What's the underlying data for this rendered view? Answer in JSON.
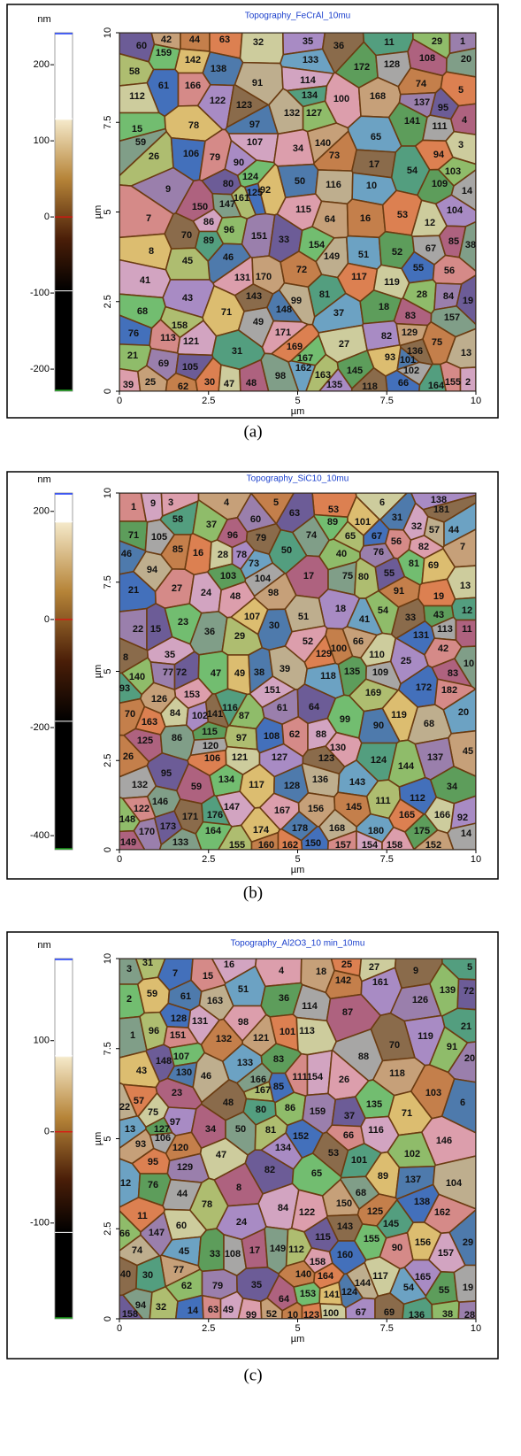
{
  "chart_data": [
    {
      "type": "image",
      "title": "Topography_FeCrAl_10mu",
      "caption": "(a)",
      "colorbar": {
        "label": "nm",
        "lim": [
          -229,
          242
        ],
        "ticks": [
          200,
          100,
          0,
          -100,
          -200
        ]
      },
      "xlabel": "µm",
      "ylabel": "µm",
      "xlim": [
        0,
        10
      ],
      "ylim": [
        0,
        10
      ],
      "xticks": [
        0,
        2.5,
        5,
        7.5,
        10
      ],
      "yticks": [
        0,
        2.5,
        5,
        7.5,
        10
      ],
      "grain_labels": [
        42,
        44,
        63,
        32,
        35,
        36,
        11,
        29,
        1,
        60,
        159,
        142,
        138,
        91,
        133,
        172,
        128,
        108,
        20,
        58,
        61,
        166,
        114,
        100,
        168,
        74,
        5,
        112,
        122,
        123,
        134,
        127,
        137,
        95,
        15,
        78,
        97,
        132,
        65,
        141,
        111,
        4,
        59,
        26,
        106,
        79,
        107,
        34,
        140,
        73,
        94,
        3,
        90,
        17,
        54,
        103,
        9,
        80,
        124,
        92,
        50,
        116,
        10,
        109,
        14,
        150,
        147,
        161,
        125,
        7,
        86,
        115,
        64,
        16,
        53,
        12,
        104,
        70,
        89,
        96,
        151,
        33,
        154,
        8,
        46,
        149,
        51,
        52,
        67,
        85,
        38,
        45,
        55,
        56,
        41,
        131,
        170,
        72,
        117,
        119,
        43,
        143,
        81,
        28,
        84,
        19,
        68,
        71,
        148,
        99,
        37,
        18,
        49,
        83,
        157,
        158,
        76,
        113,
        121,
        171,
        129,
        75,
        169,
        27,
        82,
        136,
        31,
        21,
        69,
        105,
        167,
        93,
        101,
        13,
        162,
        145,
        102,
        48,
        98,
        163,
        66,
        155,
        2,
        39,
        25,
        62,
        30,
        47,
        135,
        118,
        164
      ]
    },
    {
      "type": "image",
      "title": "Topography_SiC10_10mu",
      "caption": "(b)",
      "colorbar": {
        "label": "nm",
        "lim": [
          -426,
          234
        ],
        "ticks": [
          200,
          0,
          -200,
          -400
        ]
      },
      "xlabel": "µm",
      "ylabel": "µm",
      "xlim": [
        0,
        10
      ],
      "ylim": [
        0,
        10
      ],
      "xticks": [
        0,
        2.5,
        5,
        7.5,
        10
      ],
      "yticks": [
        0,
        2.5,
        5,
        7.5,
        10
      ],
      "grain_labels": [
        1,
        9,
        3,
        4,
        5,
        53,
        6,
        138,
        181,
        58,
        37,
        60,
        63,
        89,
        101,
        31,
        57,
        44,
        71,
        105,
        96,
        74,
        65,
        67,
        56,
        32,
        82,
        7,
        85,
        16,
        28,
        78,
        79,
        50,
        40,
        76,
        55,
        81,
        69,
        46,
        94,
        73,
        103,
        104,
        17,
        75,
        80,
        21,
        27,
        24,
        48,
        98,
        91,
        19,
        13,
        18,
        33,
        12,
        54,
        22,
        15,
        23,
        107,
        30,
        51,
        41,
        43,
        113,
        11,
        36,
        29,
        131,
        42,
        35,
        52,
        66,
        100,
        129,
        110,
        25,
        8,
        93,
        140,
        77,
        72,
        47,
        49,
        38,
        39,
        118,
        135,
        109,
        83,
        10,
        169,
        172,
        182,
        151,
        153,
        126,
        70,
        163,
        84,
        102,
        141,
        116,
        87,
        61,
        64,
        99,
        119,
        90,
        68,
        20,
        115,
        120,
        125,
        86,
        97,
        108,
        62,
        88,
        130,
        45,
        26,
        106,
        121,
        127,
        123,
        124,
        144,
        137,
        95,
        134,
        117,
        128,
        136,
        143,
        34,
        132,
        59,
        146,
        111,
        112,
        122,
        147,
        167,
        156,
        145,
        165,
        166,
        92,
        171,
        176,
        148,
        170,
        173,
        164,
        174,
        178,
        168,
        180,
        175,
        14,
        149,
        133,
        155,
        150,
        157,
        154,
        158,
        152,
        160,
        162
      ]
    },
    {
      "type": "image",
      "title": "Topography_Al2O3_10 min_10mu",
      "caption": "(c)",
      "colorbar": {
        "label": "nm",
        "lim": [
          -205,
          190
        ],
        "ticks": [
          100,
          0,
          -100
        ]
      },
      "xlabel": "µm",
      "ylabel": "µm",
      "xlim": [
        0,
        10
      ],
      "ylim": [
        0,
        10
      ],
      "xticks": [
        0,
        2.5,
        5,
        7.5,
        10
      ],
      "yticks": [
        0,
        2.5,
        5,
        7.5,
        10
      ],
      "grain_labels": [
        3,
        31,
        7,
        15,
        16,
        4,
        18,
        142,
        25,
        27,
        161,
        9,
        5,
        139,
        126,
        72,
        2,
        59,
        61,
        163,
        51,
        36,
        114,
        87,
        1,
        96,
        128,
        151,
        131,
        98,
        121,
        132,
        101,
        113,
        119,
        70,
        21,
        91,
        20,
        148,
        107,
        43,
        130,
        46,
        133,
        83,
        88,
        23,
        166,
        167,
        85,
        111,
        154,
        26,
        118,
        103,
        57,
        75,
        97,
        48,
        80,
        86,
        159,
        37,
        135,
        71,
        6,
        22,
        13,
        127,
        106,
        34,
        50,
        81,
        152,
        66,
        116,
        146,
        93,
        120,
        95,
        47,
        134,
        53,
        101,
        102,
        129,
        82,
        65,
        89,
        137,
        104,
        12,
        76,
        44,
        8,
        68,
        78,
        138,
        162,
        84,
        122,
        150,
        125,
        11,
        60,
        24,
        143,
        145,
        66,
        147,
        115,
        155,
        156,
        29,
        74,
        45,
        33,
        108,
        17,
        149,
        112,
        160,
        90,
        157,
        158,
        77,
        140,
        164,
        117,
        165,
        40,
        30,
        62,
        79,
        35,
        153,
        141,
        124,
        144,
        54,
        55,
        19,
        64,
        94,
        32,
        14,
        63,
        49,
        99,
        52,
        10,
        123,
        100,
        67,
        69,
        136,
        38,
        28,
        158
      ]
    }
  ]
}
